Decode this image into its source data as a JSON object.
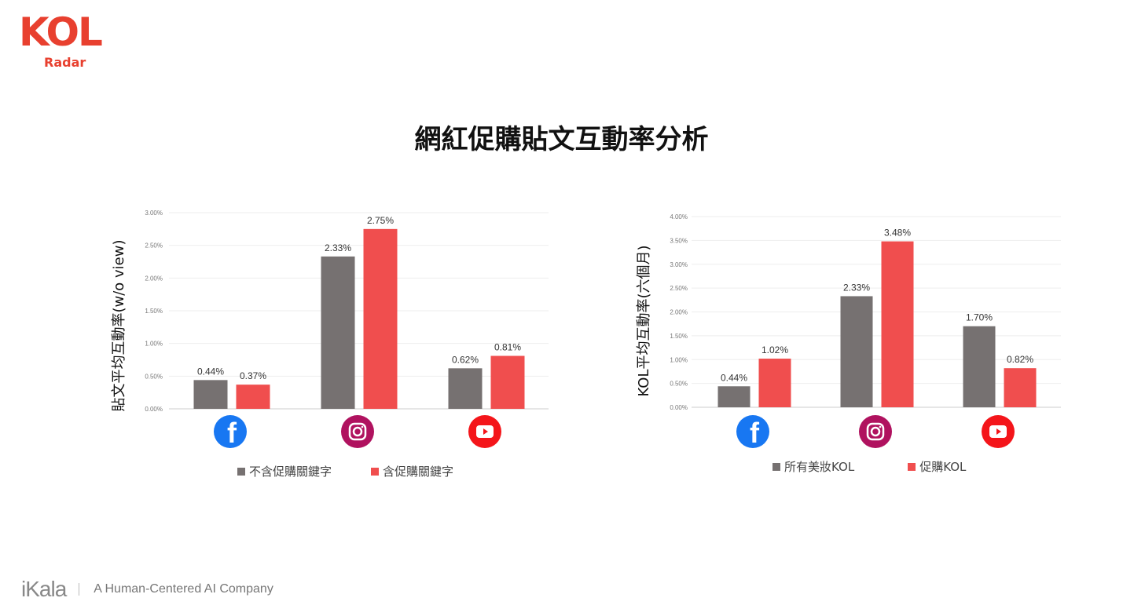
{
  "logo": {
    "brand": "KOL",
    "sub": "Radar",
    "color": "#e8402f"
  },
  "title": "網紅促購貼文互動率分析",
  "footer": {
    "brand": "iKala",
    "tagline": "A Human-Centered AI Company"
  },
  "colors": {
    "gray": "#767171",
    "red": "#f04e4e"
  },
  "chart_data": [
    {
      "type": "bar",
      "ylabel": "貼文平均互動率(w/o view)",
      "ylim": [
        0,
        3.0
      ],
      "yticks": [
        "0.00%",
        "0.50%",
        "1.00%",
        "1.50%",
        "2.00%",
        "2.50%",
        "3.00%"
      ],
      "categories": [
        "facebook",
        "instagram",
        "youtube"
      ],
      "series": [
        {
          "name": "不含促購關鍵字",
          "values": [
            0.44,
            2.33,
            0.62
          ],
          "labels": [
            "0.44%",
            "2.33%",
            "0.62%"
          ]
        },
        {
          "name": "含促購關鍵字",
          "values": [
            0.37,
            2.75,
            0.81
          ],
          "labels": [
            "0.37%",
            "2.75%",
            "0.81%"
          ]
        }
      ],
      "grid": true,
      "legend": "bottom"
    },
    {
      "type": "bar",
      "ylabel": "KOL平均互動率(六個月)",
      "ylim": [
        0,
        4.0
      ],
      "yticks": [
        "0.00%",
        "0.50%",
        "1.00%",
        "1.50%",
        "2.00%",
        "2.50%",
        "3.00%",
        "3.50%",
        "4.00%"
      ],
      "categories": [
        "facebook",
        "instagram",
        "youtube"
      ],
      "series": [
        {
          "name": "所有美妝KOL",
          "values": [
            0.44,
            2.33,
            1.7
          ],
          "labels": [
            "0.44%",
            "2.33%",
            "1.70%"
          ]
        },
        {
          "name": "促購KOL",
          "values": [
            1.02,
            3.48,
            0.82
          ],
          "labels": [
            "1.02%",
            "3.48%",
            "0.82%"
          ]
        }
      ],
      "grid": true,
      "legend": "bottom"
    }
  ]
}
